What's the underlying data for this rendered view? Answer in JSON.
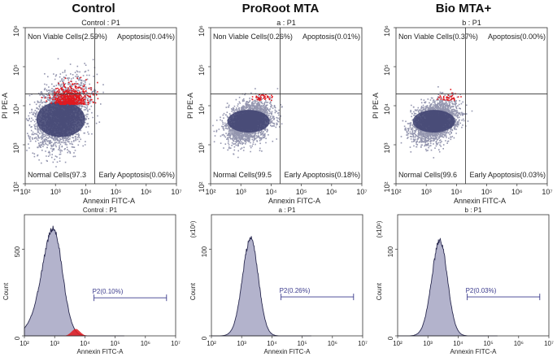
{
  "panels": [
    {
      "title": "Control",
      "dot_subtitle": "Control : P1",
      "quadrants": {
        "upper_left": "Non Viable Cells(2.59%)",
        "upper_right": "Apoptosis(0.04%)",
        "lower_left": "Normal Cells(97.3",
        "lower_right": "Early Apoptosis(0.06%)"
      },
      "dot_xlabel": "Annexin FITC-A",
      "dot_ylabel": "PI PE-A",
      "hist_subtitle": "Control : P1",
      "hist_ylabel": "Count",
      "hist_xlabel": "Annexin FITC-A",
      "hist_multiplier": "",
      "hist_yticks": [
        "0",
        "500"
      ],
      "gate_label": "P2(0.10%)"
    },
    {
      "title": "ProRoot MTA",
      "dot_subtitle": "a : P1",
      "quadrants": {
        "upper_left": "Non Viable Cells(0.26%)",
        "upper_right": "Apoptosis(0.01%)",
        "lower_left": "Normal Cells(99.5",
        "lower_right": "Early Apoptosis(0.18%)"
      },
      "dot_xlabel": "Annexin FITC-A",
      "dot_ylabel": "PI PE-A",
      "hist_subtitle": "a : P1",
      "hist_ylabel": "Count",
      "hist_xlabel": "Annexin FITC-A",
      "hist_multiplier": "(x10¹)",
      "hist_yticks": [
        "0",
        "100"
      ],
      "gate_label": "P2(0.26%)"
    },
    {
      "title": "Bio MTA+",
      "dot_subtitle": "b : P1",
      "quadrants": {
        "upper_left": "Non Viable Cells(0.37%)",
        "upper_right": "Apoptosis(0.00%)",
        "lower_left": "Normal Cells(99.6",
        "lower_right": "Early Apoptosis(0.03%)"
      },
      "dot_xlabel": "Annexin FITC-A",
      "dot_ylabel": "PI PE-A",
      "hist_subtitle": "b : P1",
      "hist_ylabel": "Count",
      "hist_xlabel": "Annexin FITC-A",
      "hist_multiplier": "(x10¹)",
      "hist_yticks": [
        "0",
        "100"
      ],
      "gate_label": "P2(0.03%)"
    }
  ],
  "colors": {
    "population": "#3c3f6e",
    "dead": "#e0191f",
    "histogram_fill": "#b3b3cc",
    "histogram_line": "#2a2a50",
    "gate": "#3a3a8c"
  },
  "chart_data": [
    {
      "type": "scatter",
      "title": "Control",
      "xlabel": "Annexin FITC-A",
      "ylabel": "PI PE-A",
      "xscale": "log",
      "yscale": "log",
      "xlim": [
        100,
        10000000
      ],
      "ylim": [
        100,
        1000000
      ],
      "x_ticks": [
        "10²",
        "10³",
        "10⁴",
        "10⁵",
        "10⁶",
        "10⁷"
      ],
      "y_ticks": [
        "10²",
        "10³",
        "10⁴",
        "10⁵",
        "10⁶"
      ],
      "quadrant_gate": {
        "x": 20000,
        "y": 20000
      },
      "quadrant_percent": {
        "non_viable": 2.59,
        "apoptosis": 0.04,
        "normal": 97.3,
        "early_apoptosis": 0.06
      },
      "population_center": {
        "x": 1500,
        "y": 6000
      }
    },
    {
      "type": "scatter",
      "title": "ProRoot MTA",
      "xlabel": "Annexin FITC-A",
      "ylabel": "PI PE-A",
      "xscale": "log",
      "yscale": "log",
      "xlim": [
        100,
        10000000
      ],
      "ylim": [
        100,
        1000000
      ],
      "x_ticks": [
        "10²",
        "10³",
        "10⁴",
        "10⁵",
        "10⁶",
        "10⁷"
      ],
      "y_ticks": [
        "10²",
        "10³",
        "10⁴",
        "10⁵",
        "10⁶"
      ],
      "quadrant_gate": {
        "x": 20000,
        "y": 20000
      },
      "quadrant_percent": {
        "non_viable": 0.26,
        "apoptosis": 0.01,
        "normal": 99.5,
        "early_apoptosis": 0.18
      },
      "population_center": {
        "x": 1800,
        "y": 4000
      }
    },
    {
      "type": "scatter",
      "title": "Bio MTA+",
      "xlabel": "Annexin FITC-A",
      "ylabel": "PI PE-A",
      "xscale": "log",
      "yscale": "log",
      "xlim": [
        100,
        10000000
      ],
      "ylim": [
        100,
        1000000
      ],
      "x_ticks": [
        "10²",
        "10³",
        "10⁴",
        "10⁵",
        "10⁶",
        "10⁷"
      ],
      "y_ticks": [
        "10²",
        "10³",
        "10⁴",
        "10⁵",
        "10⁶"
      ],
      "quadrant_gate": {
        "x": 20000,
        "y": 20000
      },
      "quadrant_percent": {
        "non_viable": 0.37,
        "apoptosis": 0.0,
        "normal": 99.6,
        "early_apoptosis": 0.03
      },
      "population_center": {
        "x": 1800,
        "y": 4000
      }
    },
    {
      "type": "area",
      "subtitle": "Control : P1",
      "xlabel": "Annexin FITC-A",
      "ylabel": "Count",
      "xscale": "log",
      "x_ticks": [
        "10²",
        "10³",
        "10⁴",
        "10⁵",
        "10⁶",
        "10⁷"
      ],
      "y_ticks": [
        "0",
        "500"
      ],
      "xlim": [
        100,
        10000000
      ],
      "ylim": [
        0,
        700
      ],
      "peak": {
        "x": 900,
        "y": 620
      },
      "red_shoulder": {
        "x": 5000,
        "y": 40
      },
      "gate": {
        "label": "P2(0.10%)",
        "x_start": 20000,
        "x_end": 5000000,
        "y": 220
      }
    },
    {
      "type": "area",
      "subtitle": "a : P1",
      "xlabel": "Annexin FITC-A",
      "ylabel": "Count",
      "multiplier": "(x10¹)",
      "xscale": "log",
      "x_ticks": [
        "10²",
        "10³",
        "10⁴",
        "10⁵",
        "10⁶",
        "10⁷"
      ],
      "y_ticks": [
        "0",
        "100"
      ],
      "xlim": [
        100,
        10000000
      ],
      "ylim": [
        0,
        140
      ],
      "peak": {
        "x": 2000,
        "y": 113
      },
      "gate": {
        "label": "P2(0.26%)",
        "x_start": 20000,
        "x_end": 5000000,
        "y": 45
      }
    },
    {
      "type": "area",
      "subtitle": "b : P1",
      "xlabel": "Annexin FITC-A",
      "ylabel": "Count",
      "multiplier": "(x10¹)",
      "xscale": "log",
      "x_ticks": [
        "10²",
        "10³",
        "10⁴",
        "10⁵",
        "10⁶",
        "10⁷"
      ],
      "y_ticks": [
        "0",
        "100"
      ],
      "xlim": [
        100,
        10000000
      ],
      "ylim": [
        0,
        140
      ],
      "peak": {
        "x": 2500,
        "y": 110
      },
      "gate": {
        "label": "P2(0.03%)",
        "x_start": 20000,
        "x_end": 5000000,
        "y": 45
      }
    }
  ]
}
